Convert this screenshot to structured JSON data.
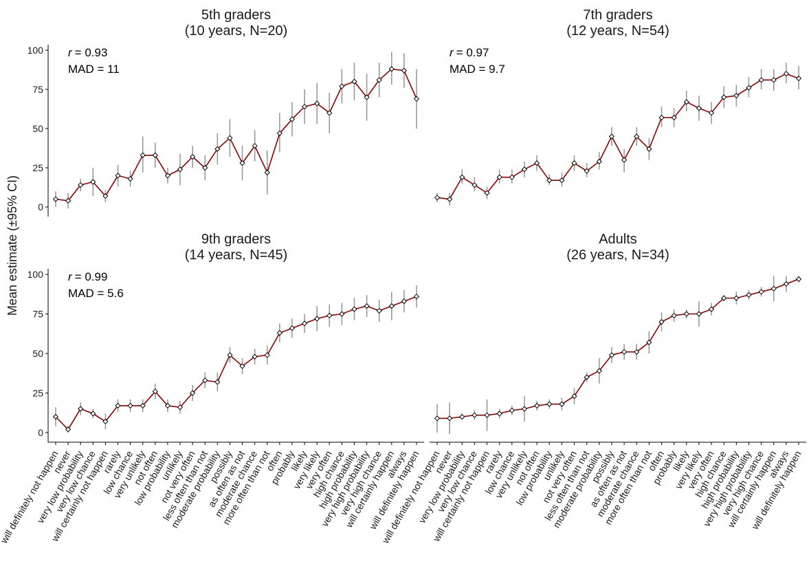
{
  "ylabel": "Mean estimate (±95% CI)",
  "y_ticks": [
    "0",
    "25",
    "50",
    "75",
    "100"
  ],
  "colors": {
    "line": "#8b0000",
    "error_bar": "#999999",
    "marker_fill": "#ffffff",
    "marker_edge": "#000000"
  },
  "chart_data": [
    {
      "type": "line",
      "title": "5th graders",
      "subtitle": "(10 years, N=20)",
      "r_label": "r",
      "r_value": "= 0.93",
      "mad_label": "MAD = 11",
      "ylim": [
        0,
        100
      ],
      "categories": [
        "will definitely not happen",
        "never",
        "very low probability",
        "very low chance",
        "will certainly not happen",
        "rarely",
        "low chance",
        "very unlikely",
        "not often",
        "low probability",
        "unlikely",
        "not very often",
        "less often than not",
        "moderate probability",
        "possibly",
        "as often as not",
        "moderate chance",
        "more often than not",
        "often",
        "probably",
        "likely",
        "very likely",
        "very often",
        "high chance",
        "high probability",
        "very high probability",
        "very high chance",
        "will certainly happen",
        "always",
        "will definitely happen"
      ],
      "values": [
        5,
        4,
        14,
        16,
        7,
        20,
        18,
        33,
        33,
        20,
        24,
        32,
        25,
        37,
        44,
        28,
        39,
        22,
        47,
        56,
        64,
        66,
        60,
        77,
        80,
        70,
        81,
        88,
        87,
        69
      ],
      "ci_low": [
        0,
        -1,
        10,
        7,
        3,
        13,
        13,
        22,
        25,
        15,
        14,
        25,
        17,
        27,
        32,
        17,
        29,
        8,
        35,
        45,
        53,
        53,
        47,
        66,
        68,
        55,
        70,
        78,
        76,
        50
      ],
      "ci_high": [
        10,
        9,
        18,
        25,
        11,
        27,
        23,
        45,
        41,
        25,
        34,
        39,
        33,
        47,
        56,
        39,
        49,
        36,
        60,
        67,
        75,
        79,
        73,
        88,
        92,
        85,
        92,
        99,
        98,
        88
      ]
    },
    {
      "type": "line",
      "title": "7th graders",
      "subtitle": "(12 years, N=54)",
      "r_label": "r",
      "r_value": "= 0.97",
      "mad_label": "MAD = 9.7",
      "ylim": [
        0,
        100
      ],
      "categories": [
        "will definitely not happen",
        "never",
        "very low probability",
        "very low chance",
        "will certainly not happen",
        "rarely",
        "low chance",
        "very unlikely",
        "not often",
        "low probability",
        "unlikely",
        "not very often",
        "less often than not",
        "moderate probability",
        "possibly",
        "as often as not",
        "moderate chance",
        "more often than not",
        "often",
        "probably",
        "likely",
        "very likely",
        "very often",
        "high chance",
        "high probability",
        "very high probability",
        "very high chance",
        "will certainly happen",
        "always",
        "will definitely happen"
      ],
      "values": [
        6,
        5,
        19,
        14,
        9,
        19,
        19,
        24,
        28,
        17,
        17,
        28,
        23,
        29,
        45,
        30,
        45,
        37,
        57,
        57,
        67,
        63,
        60,
        70,
        71,
        76,
        81,
        81,
        85,
        82
      ],
      "ci_low": [
        3,
        1,
        15,
        10,
        5,
        15,
        15,
        19,
        23,
        14,
        13,
        23,
        19,
        24,
        39,
        22,
        39,
        30,
        51,
        51,
        61,
        55,
        53,
        63,
        64,
        70,
        75,
        74,
        79,
        75
      ],
      "ci_high": [
        9,
        9,
        24,
        19,
        13,
        24,
        24,
        29,
        33,
        21,
        22,
        33,
        28,
        35,
        51,
        37,
        51,
        44,
        64,
        63,
        74,
        71,
        67,
        77,
        78,
        83,
        88,
        88,
        92,
        90
      ]
    },
    {
      "type": "line",
      "title": "9th graders",
      "subtitle": "(14 years, N=45)",
      "r_label": "r",
      "r_value": "= 0.99",
      "mad_label": "MAD = 5.6",
      "ylim": [
        0,
        100
      ],
      "categories": [
        "will definitely not happen",
        "never",
        "very low probability",
        "very low chance",
        "will certainly not happen",
        "rarely",
        "low chance",
        "very unlikely",
        "not often",
        "low probability",
        "unlikely",
        "not very often",
        "less often than not",
        "moderate probability",
        "possibly",
        "as often as not",
        "moderate chance",
        "more often than not",
        "often",
        "probably",
        "likely",
        "very likely",
        "very often",
        "high chance",
        "high probability",
        "very high probability",
        "very high chance",
        "will certainly happen",
        "always",
        "will definitely happen"
      ],
      "values": [
        10,
        2,
        15,
        12,
        7,
        17,
        17,
        17,
        26,
        17,
        16,
        25,
        33,
        32,
        49,
        42,
        48,
        49,
        63,
        66,
        69,
        72,
        74,
        75,
        78,
        80,
        77,
        80,
        83,
        86
      ],
      "ci_low": [
        4,
        0,
        11,
        9,
        2,
        13,
        13,
        13,
        21,
        13,
        12,
        20,
        28,
        26,
        44,
        37,
        43,
        43,
        57,
        60,
        63,
        64,
        67,
        68,
        71,
        73,
        70,
        71,
        76,
        79
      ],
      "ci_high": [
        16,
        4,
        19,
        15,
        12,
        21,
        21,
        21,
        31,
        21,
        20,
        30,
        38,
        38,
        54,
        47,
        53,
        55,
        69,
        72,
        75,
        80,
        81,
        82,
        85,
        87,
        84,
        89,
        90,
        93
      ]
    },
    {
      "type": "line",
      "title": "Adults",
      "subtitle": "(26 years, N=34)",
      "ylim": [
        0,
        100
      ],
      "categories": [
        "will definitely not happen",
        "never",
        "very low probability",
        "very low chance",
        "will certainly not happen",
        "rarely",
        "low chance",
        "very unlikely",
        "not often",
        "low probability",
        "unlikely",
        "not very often",
        "less often than not",
        "moderate probability",
        "possibly",
        "as often as not",
        "moderate chance",
        "more often than not",
        "often",
        "probably",
        "likely",
        "very likely",
        "very often",
        "high chance",
        "high probability",
        "very high probability",
        "very high chance",
        "will certainly happen",
        "always",
        "will definitely happen"
      ],
      "values": [
        9,
        9,
        10,
        11,
        11,
        12,
        14,
        15,
        17,
        18,
        18,
        23,
        35,
        39,
        49,
        51,
        51,
        57,
        70,
        74,
        75,
        75,
        78,
        85,
        85,
        87,
        89,
        91,
        94,
        97
      ],
      "ci_low": [
        0,
        -1,
        8,
        8,
        1,
        9,
        11,
        7,
        14,
        15,
        14,
        18,
        32,
        31,
        44,
        46,
        46,
        50,
        64,
        70,
        72,
        67,
        74,
        83,
        81,
        84,
        86,
        83,
        89,
        95
      ],
      "ci_high": [
        18,
        19,
        12,
        14,
        21,
        15,
        17,
        23,
        20,
        21,
        22,
        28,
        38,
        47,
        54,
        56,
        56,
        64,
        76,
        78,
        78,
        83,
        82,
        87,
        89,
        90,
        92,
        99,
        99,
        99
      ]
    }
  ]
}
